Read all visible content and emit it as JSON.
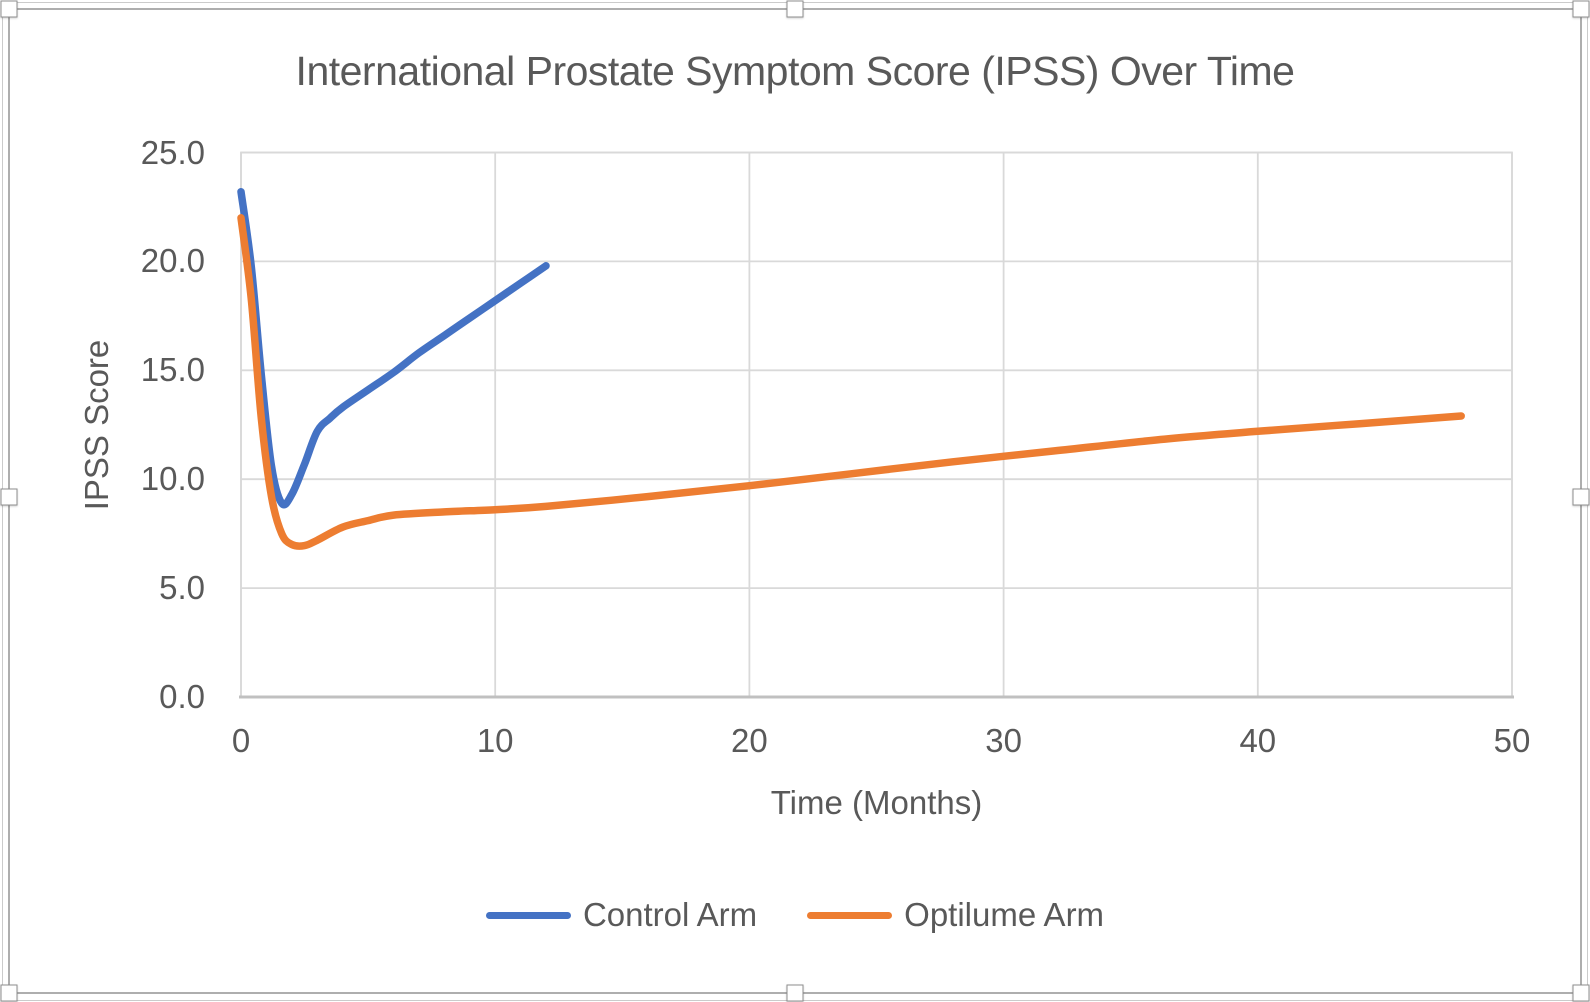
{
  "chart": {
    "title": "International Prostate Symptom Score (IPSS) Over Time",
    "x_axis": {
      "title": "Time (Months)",
      "ticks": [
        {
          "label": "0",
          "value": 0
        },
        {
          "label": "10",
          "value": 10
        },
        {
          "label": "20",
          "value": 20
        },
        {
          "label": "30",
          "value": 30
        },
        {
          "label": "40",
          "value": 40
        },
        {
          "label": "50",
          "value": 50
        }
      ]
    },
    "y_axis": {
      "title": "IPSS Score",
      "ticks": [
        {
          "label": "0.0",
          "value": 0
        },
        {
          "label": "5.0",
          "value": 5
        },
        {
          "label": "10.0",
          "value": 10
        },
        {
          "label": "15.0",
          "value": 15
        },
        {
          "label": "20.0",
          "value": 20
        },
        {
          "label": "25.0",
          "value": 25
        }
      ]
    },
    "legend": {
      "items": [
        {
          "label": "Control Arm",
          "color": "#4472C4"
        },
        {
          "label": "Optilume Arm",
          "color": "#ED7D31"
        }
      ]
    }
  },
  "chart_data": {
    "type": "line",
    "title": "International Prostate Symptom Score (IPSS) Over Time",
    "xlabel": "Time (Months)",
    "ylabel": "IPSS Score",
    "xlim": [
      0,
      50
    ],
    "ylim": [
      0,
      25
    ],
    "x_ticks": [
      0,
      10,
      20,
      30,
      40,
      50
    ],
    "y_ticks": [
      0,
      5,
      10,
      15,
      20,
      25
    ],
    "grid": true,
    "line_style": "smooth",
    "legend_position": "bottom",
    "series": [
      {
        "name": "Control Arm",
        "color": "#4472C4",
        "points": [
          [
            0,
            23.2
          ],
          [
            0.4,
            19.8
          ],
          [
            0.8,
            14.8
          ],
          [
            1.2,
            10.6
          ],
          [
            1.6,
            8.9
          ],
          [
            2,
            9.3
          ],
          [
            2.5,
            10.7
          ],
          [
            3,
            12.2
          ],
          [
            3.5,
            12.8
          ],
          [
            4,
            13.3
          ],
          [
            5,
            14.1
          ],
          [
            6,
            14.9
          ],
          [
            7,
            15.8
          ],
          [
            8,
            16.6
          ],
          [
            9,
            17.4
          ],
          [
            10,
            18.2
          ],
          [
            11,
            19.0
          ],
          [
            12,
            19.8
          ]
        ]
      },
      {
        "name": "Optilume Arm",
        "color": "#ED7D31",
        "points": [
          [
            0,
            22.0
          ],
          [
            0.4,
            18.3
          ],
          [
            0.8,
            12.8
          ],
          [
            1.2,
            9.2
          ],
          [
            1.6,
            7.5
          ],
          [
            2,
            7.0
          ],
          [
            2.5,
            6.95
          ],
          [
            3,
            7.2
          ],
          [
            4,
            7.8
          ],
          [
            5,
            8.1
          ],
          [
            6,
            8.35
          ],
          [
            8,
            8.5
          ],
          [
            10,
            8.6
          ],
          [
            12,
            8.75
          ],
          [
            16,
            9.2
          ],
          [
            20,
            9.7
          ],
          [
            24,
            10.25
          ],
          [
            28,
            10.8
          ],
          [
            32,
            11.3
          ],
          [
            36,
            11.8
          ],
          [
            40,
            12.2
          ],
          [
            44,
            12.55
          ],
          [
            48,
            12.9
          ]
        ]
      }
    ]
  },
  "colors": {
    "text": "#595959",
    "gridline": "#D9D9D9",
    "plot_border": "#D9D9D9",
    "axis_line": "#C0C0C0",
    "frame_border": "#AEAEAE",
    "series_blue": "#4472C4",
    "series_orange": "#ED7D31"
  }
}
